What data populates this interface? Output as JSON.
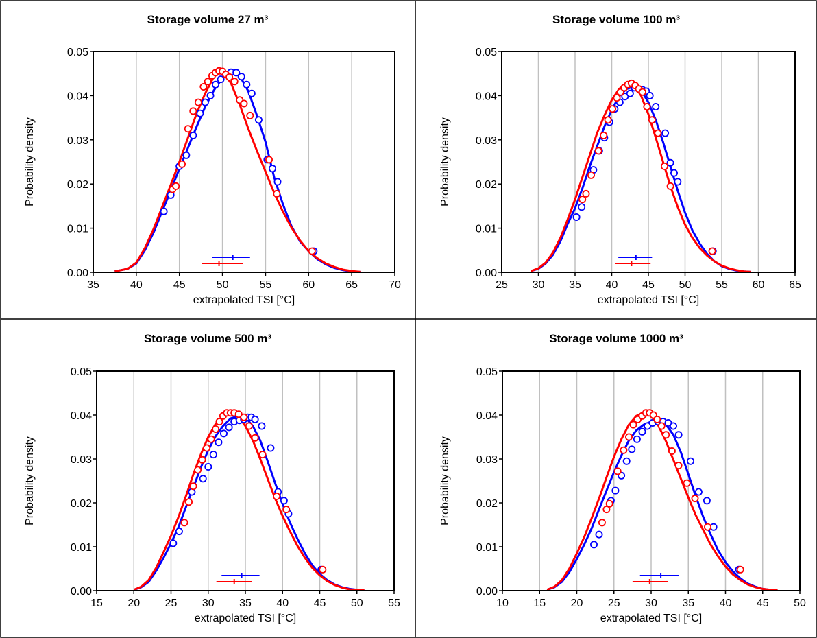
{
  "chart_data": [
    {
      "type": "line",
      "title": "Storage volume 27 m³",
      "xlabel": "extrapolated TSI [°C]",
      "ylabel": "Probability density",
      "xlim": [
        35,
        70
      ],
      "ylim": [
        0,
        0.05
      ],
      "xticks": [
        "35",
        "40",
        "45",
        "50",
        "55",
        "60",
        "65",
        "70"
      ],
      "yticks": [
        "0.00",
        "0.01",
        "0.02",
        "0.03",
        "0.04",
        "0.05"
      ],
      "grid": "vertical",
      "series": [
        {
          "color": "#0000ff",
          "x": [
            37.5,
            39,
            40,
            41,
            42,
            43,
            44,
            45,
            46,
            47,
            48,
            49,
            50,
            51,
            51.5,
            52,
            53,
            54,
            55,
            56,
            57,
            58,
            59,
            60,
            61,
            62,
            63,
            64,
            65,
            66
          ],
          "y": [
            0.0002,
            0.0008,
            0.002,
            0.005,
            0.009,
            0.0138,
            0.0185,
            0.0235,
            0.0282,
            0.033,
            0.0375,
            0.0412,
            0.044,
            0.0452,
            0.0453,
            0.0445,
            0.041,
            0.0355,
            0.0295,
            0.0215,
            0.0155,
            0.0105,
            0.007,
            0.0048,
            0.003,
            0.0018,
            0.001,
            0.0005,
            0.0002,
            0.0001
          ],
          "markers_x": [
            43.2,
            44,
            45,
            45.8,
            46.6,
            47.4,
            48,
            48.6,
            49.2,
            49.8,
            50.4,
            51,
            51.6,
            52.2,
            52.8,
            53.4,
            54.2,
            55.2,
            55.8,
            56.4,
            60.6
          ],
          "markers_y": [
            0.0138,
            0.0175,
            0.024,
            0.0265,
            0.031,
            0.036,
            0.0385,
            0.04,
            0.0425,
            0.0437,
            0.0448,
            0.0453,
            0.0452,
            0.0443,
            0.0425,
            0.0405,
            0.0345,
            0.0255,
            0.0235,
            0.0205,
            0.0048
          ],
          "mean": 51.2,
          "range": [
            48.8,
            53.2
          ]
        },
        {
          "color": "#ff0000",
          "x": [
            37.5,
            39,
            40,
            41,
            42,
            43,
            44,
            45,
            46,
            47,
            48,
            49,
            49.5,
            50,
            51,
            52,
            53,
            54,
            55,
            56,
            57,
            58,
            59,
            60,
            61,
            62,
            63,
            64,
            65,
            66
          ],
          "y": [
            0.0002,
            0.0008,
            0.0022,
            0.0055,
            0.0098,
            0.0148,
            0.0198,
            0.025,
            0.0305,
            0.036,
            0.0405,
            0.0443,
            0.0456,
            0.0455,
            0.0428,
            0.038,
            0.0325,
            0.0275,
            0.0228,
            0.018,
            0.0138,
            0.0102,
            0.0072,
            0.0048,
            0.0032,
            0.002,
            0.0012,
            0.0006,
            0.0003,
            0.0001
          ],
          "markers_x": [
            44.2,
            44.6,
            45.3,
            46,
            46.6,
            47.2,
            47.8,
            48.3,
            48.8,
            49.2,
            49.6,
            50,
            50.4,
            50.8,
            51.4,
            52,
            52.5,
            53.2,
            55.4,
            56.3,
            60.4
          ],
          "markers_y": [
            0.0188,
            0.0195,
            0.0245,
            0.0325,
            0.0365,
            0.0385,
            0.042,
            0.0432,
            0.0445,
            0.0452,
            0.0456,
            0.0455,
            0.0448,
            0.0442,
            0.0432,
            0.039,
            0.0382,
            0.0355,
            0.0255,
            0.0178,
            0.0048
          ],
          "mean": 49.6,
          "range": [
            47.6,
            52.4
          ]
        }
      ]
    },
    {
      "type": "line",
      "title": "Storage volume 100 m³",
      "xlabel": "extrapolated TSI [°C]",
      "ylabel": "Probability density",
      "xlim": [
        25,
        65
      ],
      "ylim": [
        0,
        0.05
      ],
      "xticks": [
        "25",
        "30",
        "35",
        "40",
        "45",
        "50",
        "55",
        "60",
        "65"
      ],
      "yticks": [
        "0.00",
        "0.01",
        "0.02",
        "0.03",
        "0.04",
        "0.05"
      ],
      "grid": "vertical",
      "series": [
        {
          "color": "#0000ff",
          "x": [
            29,
            30,
            31,
            32,
            33,
            34,
            35,
            36,
            37,
            38,
            39,
            40,
            41,
            42,
            43,
            44,
            45,
            46,
            47,
            48,
            49,
            50,
            51,
            52,
            53,
            54,
            55,
            56,
            57,
            58,
            59
          ],
          "y": [
            0.0003,
            0.0008,
            0.002,
            0.004,
            0.007,
            0.011,
            0.0145,
            0.019,
            0.024,
            0.0285,
            0.033,
            0.0368,
            0.0398,
            0.0415,
            0.042,
            0.0412,
            0.0385,
            0.0345,
            0.0295,
            0.024,
            0.0185,
            0.0135,
            0.0095,
            0.0065,
            0.0042,
            0.0025,
            0.0014,
            0.0008,
            0.0004,
            0.0002,
            0.0001
          ],
          "markers_x": [
            35.2,
            35.9,
            37.5,
            38.3,
            39,
            39.7,
            40.4,
            41.1,
            41.8,
            42.5,
            43.1,
            43.7,
            44.2,
            44.7,
            45.2,
            46,
            47.3,
            48,
            48.5,
            49,
            53.8
          ],
          "markers_y": [
            0.0125,
            0.0148,
            0.0232,
            0.0275,
            0.0305,
            0.034,
            0.037,
            0.0385,
            0.0398,
            0.0405,
            0.0418,
            0.0415,
            0.0413,
            0.041,
            0.04,
            0.0375,
            0.0315,
            0.0248,
            0.0225,
            0.0205,
            0.0048
          ],
          "mean": 43.3,
          "range": [
            40.9,
            45.5
          ]
        },
        {
          "color": "#ff0000",
          "x": [
            29,
            30,
            31,
            32,
            33,
            34,
            35,
            36,
            37,
            38,
            39,
            40,
            41,
            42,
            43,
            44,
            45,
            46,
            47,
            48,
            49,
            50,
            51,
            52,
            53,
            54,
            55,
            56,
            57,
            58,
            59
          ],
          "y": [
            0.0003,
            0.0009,
            0.0022,
            0.0045,
            0.0078,
            0.012,
            0.0165,
            0.0215,
            0.0265,
            0.0315,
            0.0355,
            0.039,
            0.0415,
            0.0428,
            0.0425,
            0.04,
            0.0358,
            0.0305,
            0.025,
            0.0195,
            0.0148,
            0.0108,
            0.0078,
            0.0055,
            0.0038,
            0.0025,
            0.0015,
            0.0009,
            0.0005,
            0.0002,
            0.0001
          ],
          "markers_x": [
            36,
            36.5,
            37.2,
            38.2,
            38.9,
            39.5,
            40.1,
            40.7,
            41.2,
            41.7,
            42.2,
            42.7,
            43.2,
            43.7,
            44.2,
            44.8,
            45.5,
            46.3,
            47.2,
            48,
            53.7
          ],
          "markers_y": [
            0.0165,
            0.0178,
            0.022,
            0.0275,
            0.031,
            0.0345,
            0.037,
            0.0395,
            0.0408,
            0.0418,
            0.0425,
            0.0428,
            0.0423,
            0.0415,
            0.0408,
            0.0375,
            0.0345,
            0.0315,
            0.024,
            0.0195,
            0.0048
          ],
          "mean": 42.7,
          "range": [
            40.5,
            45.3
          ]
        }
      ]
    },
    {
      "type": "line",
      "title": "Storage volume 500 m³",
      "xlabel": "extrapolated TSI [°C]",
      "ylabel": "Probability density",
      "xlim": [
        15,
        55
      ],
      "ylim": [
        0,
        0.05
      ],
      "xticks": [
        "15",
        "20",
        "25",
        "30",
        "35",
        "40",
        "45",
        "50",
        "55"
      ],
      "yticks": [
        "0.00",
        "0.01",
        "0.02",
        "0.03",
        "0.04",
        "0.05"
      ],
      "grid": "vertical",
      "series": [
        {
          "color": "#0000ff",
          "x": [
            20,
            21,
            22,
            23,
            24,
            25,
            26,
            27,
            28,
            29,
            30,
            31,
            32,
            33,
            34,
            35,
            36,
            37,
            38,
            39,
            40,
            41,
            42,
            43,
            44,
            45,
            46,
            47,
            48,
            49,
            50,
            51
          ],
          "y": [
            0.0002,
            0.0008,
            0.002,
            0.0045,
            0.0075,
            0.0108,
            0.0145,
            0.019,
            0.0235,
            0.028,
            0.032,
            0.0352,
            0.0375,
            0.0392,
            0.0398,
            0.0395,
            0.0375,
            0.0342,
            0.0295,
            0.0245,
            0.0198,
            0.0155,
            0.0118,
            0.0085,
            0.0058,
            0.0038,
            0.0024,
            0.0014,
            0.0008,
            0.0004,
            0.0002,
            0.0001
          ],
          "markers_x": [
            25.3,
            26.1,
            27.8,
            29.3,
            30,
            30.7,
            31.4,
            32.1,
            32.8,
            33.5,
            34.2,
            34.8,
            35.3,
            35.8,
            36.3,
            37.2,
            38.4,
            39.4,
            40.2,
            40.8,
            45.2
          ],
          "markers_y": [
            0.0108,
            0.0135,
            0.0225,
            0.0255,
            0.0282,
            0.031,
            0.0338,
            0.0358,
            0.0372,
            0.0385,
            0.0388,
            0.039,
            0.0395,
            0.0395,
            0.039,
            0.0375,
            0.0325,
            0.0225,
            0.0205,
            0.0175,
            0.0048
          ],
          "mean": 34.5,
          "range": [
            31.8,
            36.9
          ]
        },
        {
          "color": "#ff0000",
          "x": [
            20,
            21,
            22,
            23,
            24,
            25,
            26,
            27,
            28,
            29,
            30,
            31,
            32,
            33,
            34,
            35,
            36,
            37,
            38,
            39,
            40,
            41,
            42,
            43,
            44,
            45,
            46,
            47,
            48,
            49,
            50,
            51
          ],
          "y": [
            0.0002,
            0.0009,
            0.0024,
            0.0052,
            0.0088,
            0.0125,
            0.0168,
            0.0215,
            0.0265,
            0.031,
            0.035,
            0.038,
            0.0398,
            0.0405,
            0.0398,
            0.0375,
            0.0342,
            0.03,
            0.0255,
            0.021,
            0.017,
            0.0135,
            0.0102,
            0.0075,
            0.0052,
            0.0035,
            0.0022,
            0.0013,
            0.0007,
            0.0003,
            0.0002,
            0.0001
          ],
          "markers_x": [
            26.8,
            27.4,
            28,
            28.6,
            29.2,
            29.8,
            30.4,
            31,
            31.5,
            32,
            32.5,
            33,
            33.5,
            34.1,
            34.8,
            35.5,
            36.3,
            37.3,
            39.2,
            40.5,
            45.4
          ],
          "markers_y": [
            0.0155,
            0.0202,
            0.0238,
            0.0275,
            0.0298,
            0.0325,
            0.0345,
            0.0368,
            0.0385,
            0.0398,
            0.0405,
            0.0405,
            0.0405,
            0.0402,
            0.0395,
            0.0375,
            0.0348,
            0.031,
            0.0215,
            0.0185,
            0.0048
          ],
          "mean": 33.5,
          "range": [
            31.1,
            35.9
          ]
        }
      ]
    },
    {
      "type": "line",
      "title": "Storage volume 1000 m³",
      "xlabel": "extrapolated TSI [°C]",
      "ylabel": "Probability density",
      "xlim": [
        10,
        50
      ],
      "ylim": [
        0,
        0.05
      ],
      "xticks": [
        "10",
        "15",
        "20",
        "25",
        "30",
        "35",
        "40",
        "45",
        "50"
      ],
      "yticks": [
        "0.00",
        "0.01",
        "0.02",
        "0.03",
        "0.04",
        "0.05"
      ],
      "grid": "vertical",
      "series": [
        {
          "color": "#0000ff",
          "x": [
            16,
            17,
            18,
            19,
            20,
            21,
            22,
            23,
            24,
            25,
            26,
            27,
            28,
            29,
            30,
            31,
            32,
            33,
            34,
            35,
            36,
            37,
            38,
            39,
            40,
            41,
            42,
            43,
            44,
            45,
            46,
            47
          ],
          "y": [
            0.0002,
            0.0008,
            0.002,
            0.0042,
            0.0072,
            0.0105,
            0.0142,
            0.0185,
            0.0228,
            0.027,
            0.0308,
            0.0342,
            0.0365,
            0.0378,
            0.0385,
            0.0385,
            0.0378,
            0.0355,
            0.0315,
            0.0265,
            0.0215,
            0.0168,
            0.0128,
            0.0092,
            0.0065,
            0.0044,
            0.0028,
            0.0016,
            0.0009,
            0.0004,
            0.0002,
            0.0001
          ],
          "markers_x": [
            22.3,
            23,
            24.6,
            25.2,
            26,
            26.7,
            27.4,
            28.1,
            28.8,
            29.5,
            30.2,
            30.9,
            31.6,
            32.3,
            33,
            33.7,
            35.3,
            36.4,
            37.5,
            38.4,
            41.8
          ],
          "markers_y": [
            0.0105,
            0.0128,
            0.0205,
            0.0228,
            0.0262,
            0.0295,
            0.0322,
            0.0345,
            0.0362,
            0.0375,
            0.0382,
            0.0385,
            0.0385,
            0.0382,
            0.0375,
            0.0355,
            0.0295,
            0.0225,
            0.0205,
            0.0145,
            0.0048
          ],
          "mean": 31.3,
          "range": [
            28.5,
            33.7
          ]
        },
        {
          "color": "#ff0000",
          "x": [
            16,
            17,
            18,
            19,
            20,
            21,
            22,
            23,
            24,
            25,
            26,
            27,
            28,
            29,
            30,
            31,
            32,
            33,
            34,
            35,
            36,
            37,
            38,
            39,
            40,
            41,
            42,
            43,
            44,
            45,
            46,
            47
          ],
          "y": [
            0.0002,
            0.0009,
            0.0024,
            0.005,
            0.0085,
            0.0122,
            0.0165,
            0.021,
            0.0258,
            0.0305,
            0.0345,
            0.0378,
            0.0398,
            0.0405,
            0.0398,
            0.0375,
            0.034,
            0.0298,
            0.0255,
            0.0212,
            0.0172,
            0.0138,
            0.0105,
            0.0078,
            0.0055,
            0.0037,
            0.0024,
            0.0014,
            0.0008,
            0.0004,
            0.0002,
            0.0001
          ],
          "markers_x": [
            23.4,
            24,
            24.4,
            25.5,
            26.3,
            27,
            27.6,
            28.2,
            28.8,
            29.3,
            29.8,
            30.3,
            30.8,
            31.4,
            32,
            32.8,
            33.7,
            34.8,
            35.9,
            37.6,
            42
          ],
          "markers_y": [
            0.0155,
            0.0185,
            0.0198,
            0.0272,
            0.032,
            0.035,
            0.0378,
            0.039,
            0.0398,
            0.0405,
            0.0405,
            0.04,
            0.039,
            0.0375,
            0.0355,
            0.0318,
            0.0285,
            0.0245,
            0.021,
            0.0145,
            0.0048
          ],
          "mean": 29.8,
          "range": [
            27.5,
            32.3
          ]
        }
      ]
    }
  ]
}
